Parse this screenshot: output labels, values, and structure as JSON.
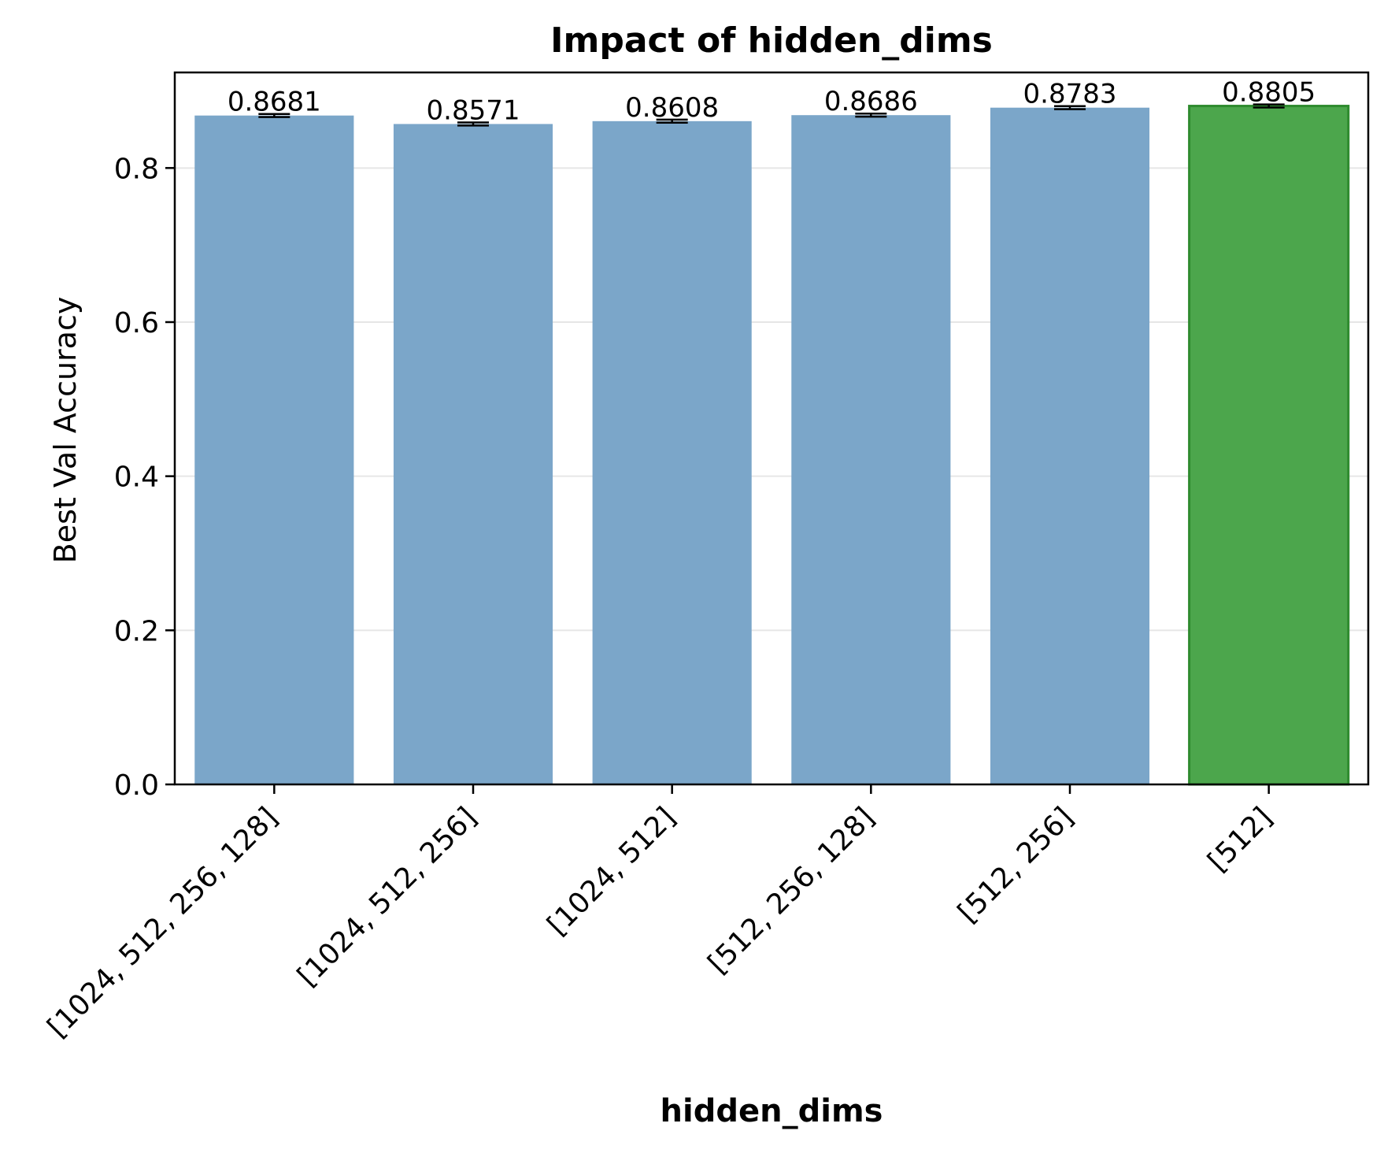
{
  "chart_data": {
    "type": "bar",
    "title": "Impact of hidden_dims",
    "xlabel": "hidden_dims",
    "ylabel": "Best Val Accuracy",
    "categories": [
      "[1024, 512, 256, 128]",
      "[1024, 512, 256]",
      "[1024, 512]",
      "[512, 256, 128]",
      "[512, 256]",
      "[512]"
    ],
    "values": [
      0.8681,
      0.8571,
      0.8608,
      0.8686,
      0.8783,
      0.8805
    ],
    "value_labels": [
      "0.8681",
      "0.8571",
      "0.8608",
      "0.8686",
      "0.8783",
      "0.8805"
    ],
    "error": [
      0.002,
      0.002,
      0.002,
      0.002,
      0.002,
      0.002
    ],
    "highlight_index": 5,
    "ylim": [
      0,
      0.924
    ],
    "yticks": [
      0.0,
      0.2,
      0.4,
      0.6,
      0.8
    ],
    "ytick_labels": [
      "0.0",
      "0.2",
      "0.4",
      "0.6",
      "0.8"
    ],
    "grid": "y",
    "colors": {
      "bar": "#7ba6c9",
      "highlight": "#4ca64c",
      "highlight_edge": "#2e8b2e",
      "grid": "#e6e6e6",
      "axis": "#000000"
    }
  }
}
